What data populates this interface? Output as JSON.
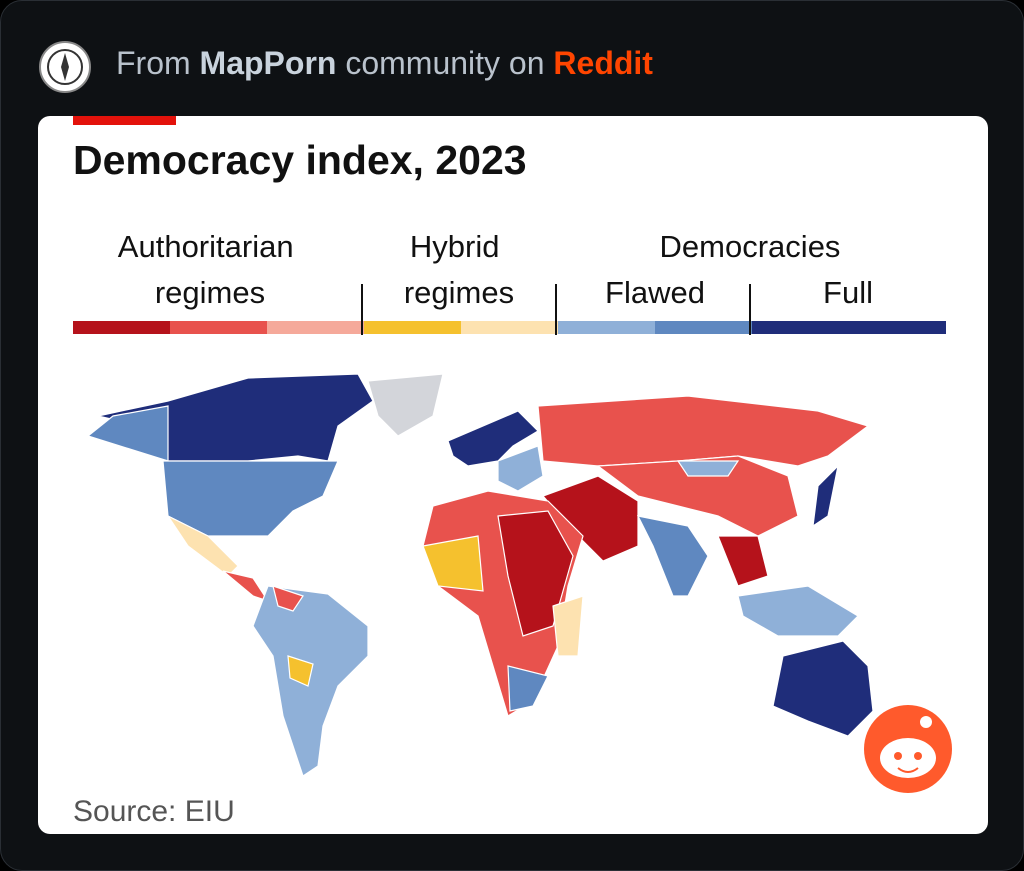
{
  "header": {
    "prefix": "From",
    "community": "MapPorn",
    "middle": "community on",
    "site": "Reddit"
  },
  "card": {
    "title": "Democracy index, 2023",
    "legend": {
      "authoritarian": {
        "label_lines": [
          "Authoritarian",
          "regimes"
        ],
        "colors": [
          "#b5121b",
          "#e8524d",
          "#f5a99a"
        ]
      },
      "hybrid": {
        "label_lines": [
          "Hybrid",
          "regimes"
        ],
        "colors": [
          "#f5c12e",
          "#fde2b0"
        ]
      },
      "democracies": {
        "label": "Democracies",
        "flawed": {
          "label": "Flawed",
          "colors": [
            "#8fb0d8",
            "#5f88c0"
          ]
        },
        "full": {
          "label": "Full",
          "colors": [
            "#1f2d7a"
          ]
        }
      }
    },
    "source": "Source: EIU"
  }
}
